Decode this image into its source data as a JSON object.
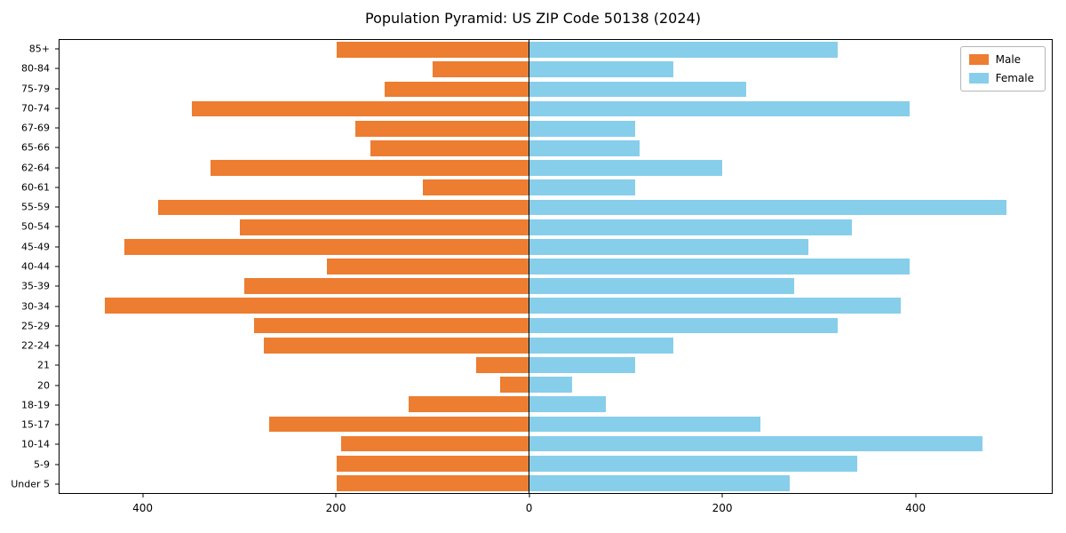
{
  "chart_data": {
    "type": "bar",
    "orientation": "horizontal",
    "title": "Population Pyramid: US ZIP Code 50138 (2024)",
    "categories": [
      "85+",
      "80-84",
      "75-79",
      "70-74",
      "67-69",
      "65-66",
      "62-64",
      "60-61",
      "55-59",
      "50-54",
      "45-49",
      "40-44",
      "35-39",
      "30-34",
      "25-29",
      "22-24",
      "21",
      "20",
      "18-19",
      "15-17",
      "10-14",
      "5-9",
      "Under 5"
    ],
    "series": [
      {
        "name": "Male",
        "color": "#ED7D31",
        "direction": "left",
        "values": [
          200,
          100,
          150,
          350,
          180,
          165,
          330,
          110,
          385,
          300,
          420,
          210,
          295,
          440,
          285,
          275,
          55,
          30,
          125,
          270,
          195,
          200,
          200
        ]
      },
      {
        "name": "Female",
        "color": "#87CEEB",
        "direction": "right",
        "values": [
          320,
          150,
          225,
          395,
          110,
          115,
          200,
          110,
          495,
          335,
          290,
          395,
          275,
          385,
          320,
          150,
          110,
          45,
          80,
          240,
          470,
          340,
          270
        ]
      }
    ],
    "xlim": [
      -487,
      542
    ],
    "x_ticks": [
      {
        "value": -400,
        "label": "400"
      },
      {
        "value": -200,
        "label": "200"
      },
      {
        "value": 0,
        "label": "0"
      },
      {
        "value": 200,
        "label": "200"
      },
      {
        "value": 400,
        "label": "400"
      }
    ],
    "bar_fraction": 0.8,
    "legend_position": "upper right",
    "grid": false,
    "zero_line": true,
    "xlabel": "",
    "ylabel": ""
  }
}
